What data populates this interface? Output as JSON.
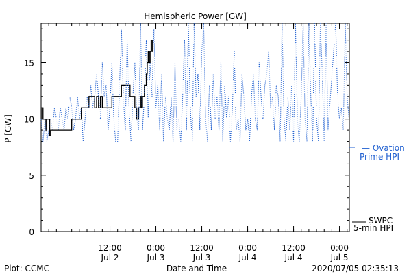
{
  "chart_data": {
    "type": "line",
    "title": "Hemispheric Power [GW]",
    "xlabel": "Date and Time",
    "ylabel": "P [GW]",
    "ylim": [
      0,
      18.5
    ],
    "y_ticks": [
      0,
      5,
      10,
      15
    ],
    "xlim": [
      "2020-07-01T18:00",
      "2020-07-05T02:35"
    ],
    "x_ticks": [
      {
        "t": "2020-07-02T12:00",
        "time": "12:00",
        "date": "Jul 2"
      },
      {
        "t": "2020-07-03T00:00",
        "time": "0:00",
        "date": "Jul 3"
      },
      {
        "t": "2020-07-03T12:00",
        "time": "12:00",
        "date": "Jul 3"
      },
      {
        "t": "2020-07-04T00:00",
        "time": "0:00",
        "date": "Jul 4"
      },
      {
        "t": "2020-07-04T12:00",
        "time": "12:00",
        "date": "Jul 4"
      },
      {
        "t": "2020-07-05T00:00",
        "time": "0:00",
        "date": "Jul 5"
      }
    ],
    "grid": false,
    "legend_position": "right",
    "series": [
      {
        "name": "SWPC 5-min HPI",
        "style": "solid",
        "color": "#000000",
        "points": [
          [
            "2020-07-01T18:00",
            10
          ],
          [
            "2020-07-01T18:15",
            11
          ],
          [
            "2020-07-01T18:30",
            10
          ],
          [
            "2020-07-01T19:00",
            10
          ],
          [
            "2020-07-01T19:15",
            9
          ],
          [
            "2020-07-01T19:30",
            10
          ],
          [
            "2020-07-01T20:00",
            10
          ],
          [
            "2020-07-01T20:15",
            8.5
          ],
          [
            "2020-07-01T20:30",
            9
          ],
          [
            "2020-07-01T22:00",
            9
          ],
          [
            "2020-07-02T00:00",
            9
          ],
          [
            "2020-07-02T01:45",
            9
          ],
          [
            "2020-07-02T02:00",
            10
          ],
          [
            "2020-07-02T04:00",
            10
          ],
          [
            "2020-07-02T04:30",
            11
          ],
          [
            "2020-07-02T06:00",
            11
          ],
          [
            "2020-07-02T06:30",
            12
          ],
          [
            "2020-07-02T07:30",
            12
          ],
          [
            "2020-07-02T08:00",
            11
          ],
          [
            "2020-07-02T08:30",
            12
          ],
          [
            "2020-07-02T09:00",
            11
          ],
          [
            "2020-07-02T09:30",
            12
          ],
          [
            "2020-07-02T10:00",
            11
          ],
          [
            "2020-07-02T12:00",
            11
          ],
          [
            "2020-07-02T12:30",
            12
          ],
          [
            "2020-07-02T14:30",
            12
          ],
          [
            "2020-07-02T15:00",
            13
          ],
          [
            "2020-07-02T17:00",
            13
          ],
          [
            "2020-07-02T17:15",
            12
          ],
          [
            "2020-07-02T18:15",
            12
          ],
          [
            "2020-07-02T18:30",
            11
          ],
          [
            "2020-07-02T19:00",
            10
          ],
          [
            "2020-07-02T19:30",
            11
          ],
          [
            "2020-07-02T20:00",
            12
          ],
          [
            "2020-07-02T20:15",
            11
          ],
          [
            "2020-07-02T20:30",
            12
          ],
          [
            "2020-07-02T20:45",
            12
          ],
          [
            "2020-07-02T21:00",
            13
          ],
          [
            "2020-07-02T21:30",
            14
          ],
          [
            "2020-07-02T21:45",
            15
          ],
          [
            "2020-07-02T22:00",
            16
          ],
          [
            "2020-07-02T22:15",
            15
          ],
          [
            "2020-07-02T22:30",
            16
          ],
          [
            "2020-07-02T22:45",
            17
          ],
          [
            "2020-07-02T23:00",
            16
          ],
          [
            "2020-07-02T23:15",
            17
          ],
          [
            "2020-07-02T23:30",
            17
          ]
        ]
      },
      {
        "name": "Ovation Prime HPI",
        "style": "dotted",
        "color": "#1f5fd0",
        "points": [
          [
            "2020-07-01T18:00",
            10
          ],
          [
            "2020-07-01T18:30",
            8
          ],
          [
            "2020-07-01T19:00",
            10
          ],
          [
            "2020-07-01T19:30",
            8
          ],
          [
            "2020-07-01T20:00",
            9
          ],
          [
            "2020-07-01T20:30",
            10
          ],
          [
            "2020-07-01T21:00",
            9
          ],
          [
            "2020-07-01T21:30",
            11
          ],
          [
            "2020-07-01T22:00",
            10
          ],
          [
            "2020-07-01T22:30",
            9
          ],
          [
            "2020-07-01T23:00",
            11
          ],
          [
            "2020-07-01T23:30",
            10
          ],
          [
            "2020-07-02T00:00",
            9
          ],
          [
            "2020-07-02T00:30",
            11
          ],
          [
            "2020-07-02T01:00",
            10
          ],
          [
            "2020-07-02T01:30",
            12
          ],
          [
            "2020-07-02T02:00",
            11
          ],
          [
            "2020-07-02T02:30",
            9
          ],
          [
            "2020-07-02T03:00",
            10
          ],
          [
            "2020-07-02T03:30",
            12
          ],
          [
            "2020-07-02T04:00",
            10
          ],
          [
            "2020-07-02T04:30",
            11
          ],
          [
            "2020-07-02T05:00",
            8
          ],
          [
            "2020-07-02T05:30",
            10
          ],
          [
            "2020-07-02T06:00",
            12
          ],
          [
            "2020-07-02T06:30",
            11
          ],
          [
            "2020-07-02T07:00",
            13
          ],
          [
            "2020-07-02T07:30",
            11
          ],
          [
            "2020-07-02T08:00",
            12
          ],
          [
            "2020-07-02T08:30",
            14
          ],
          [
            "2020-07-02T09:00",
            12
          ],
          [
            "2020-07-02T09:30",
            10
          ],
          [
            "2020-07-02T10:00",
            15
          ],
          [
            "2020-07-02T10:30",
            12
          ],
          [
            "2020-07-02T11:00",
            13
          ],
          [
            "2020-07-02T11:30",
            9
          ],
          [
            "2020-07-02T12:00",
            11
          ],
          [
            "2020-07-02T12:30",
            15
          ],
          [
            "2020-07-02T13:00",
            10
          ],
          [
            "2020-07-02T13:30",
            8
          ],
          [
            "2020-07-02T14:00",
            8
          ],
          [
            "2020-07-02T14:30",
            13
          ],
          [
            "2020-07-02T15:00",
            18
          ],
          [
            "2020-07-02T15:30",
            12
          ],
          [
            "2020-07-02T16:00",
            9
          ],
          [
            "2020-07-02T16:30",
            17
          ],
          [
            "2020-07-02T17:00",
            11
          ],
          [
            "2020-07-02T17:30",
            8
          ],
          [
            "2020-07-02T18:00",
            12
          ],
          [
            "2020-07-02T18:30",
            15
          ],
          [
            "2020-07-02T19:00",
            10
          ],
          [
            "2020-07-02T19:30",
            9
          ],
          [
            "2020-07-02T20:00",
            18.5
          ],
          [
            "2020-07-02T20:30",
            9
          ],
          [
            "2020-07-02T21:00",
            12
          ],
          [
            "2020-07-02T21:30",
            17
          ],
          [
            "2020-07-02T22:00",
            10
          ],
          [
            "2020-07-02T22:30",
            15
          ],
          [
            "2020-07-02T23:00",
            12
          ],
          [
            "2020-07-02T23:30",
            18
          ],
          [
            "2020-07-03T00:00",
            11
          ],
          [
            "2020-07-03T00:30",
            13
          ],
          [
            "2020-07-03T01:00",
            9
          ],
          [
            "2020-07-03T01:30",
            14
          ],
          [
            "2020-07-03T02:00",
            8
          ],
          [
            "2020-07-03T02:30",
            12
          ],
          [
            "2020-07-03T03:00",
            10
          ],
          [
            "2020-07-03T03:30",
            9
          ],
          [
            "2020-07-03T04:00",
            12
          ],
          [
            "2020-07-03T04:30",
            8
          ],
          [
            "2020-07-03T05:00",
            15
          ],
          [
            "2020-07-03T05:30",
            9
          ],
          [
            "2020-07-03T06:00",
            10
          ],
          [
            "2020-07-03T06:30",
            8
          ],
          [
            "2020-07-03T07:00",
            12
          ],
          [
            "2020-07-03T07:30",
            17
          ],
          [
            "2020-07-03T08:00",
            9
          ],
          [
            "2020-07-03T08:30",
            18.5
          ],
          [
            "2020-07-03T09:00",
            11
          ],
          [
            "2020-07-03T09:30",
            8
          ],
          [
            "2020-07-03T10:00",
            18.5
          ],
          [
            "2020-07-03T10:30",
            12
          ],
          [
            "2020-07-03T11:00",
            14
          ],
          [
            "2020-07-03T11:30",
            9
          ],
          [
            "2020-07-03T12:00",
            16
          ],
          [
            "2020-07-03T12:30",
            18.5
          ],
          [
            "2020-07-03T13:00",
            10
          ],
          [
            "2020-07-03T13:30",
            8
          ],
          [
            "2020-07-03T14:00",
            13
          ],
          [
            "2020-07-03T14:30",
            9
          ],
          [
            "2020-07-03T15:00",
            14
          ],
          [
            "2020-07-03T15:30",
            10
          ],
          [
            "2020-07-03T16:00",
            12
          ],
          [
            "2020-07-03T16:30",
            9
          ],
          [
            "2020-07-03T17:00",
            15
          ],
          [
            "2020-07-03T17:30",
            8
          ],
          [
            "2020-07-03T18:00",
            13
          ],
          [
            "2020-07-03T18:30",
            10
          ],
          [
            "2020-07-03T19:00",
            12
          ],
          [
            "2020-07-03T19:30",
            8
          ],
          [
            "2020-07-03T20:00",
            11
          ],
          [
            "2020-07-03T20:30",
            16
          ],
          [
            "2020-07-03T21:00",
            9
          ],
          [
            "2020-07-03T21:30",
            10
          ],
          [
            "2020-07-03T22:00",
            8
          ],
          [
            "2020-07-03T22:30",
            14
          ],
          [
            "2020-07-03T23:00",
            12
          ],
          [
            "2020-07-03T23:30",
            9
          ],
          [
            "2020-07-04T00:00",
            10
          ],
          [
            "2020-07-04T00:30",
            8
          ],
          [
            "2020-07-04T01:00",
            12
          ],
          [
            "2020-07-04T01:30",
            14
          ],
          [
            "2020-07-04T02:00",
            10
          ],
          [
            "2020-07-04T02:30",
            9
          ],
          [
            "2020-07-04T03:00",
            15
          ],
          [
            "2020-07-04T03:30",
            12
          ],
          [
            "2020-07-04T04:00",
            10
          ],
          [
            "2020-07-04T04:30",
            13
          ],
          [
            "2020-07-04T05:00",
            14
          ],
          [
            "2020-07-04T05:30",
            16
          ],
          [
            "2020-07-04T06:00",
            11
          ],
          [
            "2020-07-04T06:30",
            12
          ],
          [
            "2020-07-04T07:00",
            9
          ],
          [
            "2020-07-04T07:30",
            13
          ],
          [
            "2020-07-04T08:00",
            12
          ],
          [
            "2020-07-04T08:30",
            8
          ],
          [
            "2020-07-04T09:00",
            18.5
          ],
          [
            "2020-07-04T09:30",
            10
          ],
          [
            "2020-07-04T10:00",
            8
          ],
          [
            "2020-07-04T10:30",
            12
          ],
          [
            "2020-07-04T11:00",
            9
          ],
          [
            "2020-07-04T11:30",
            13
          ],
          [
            "2020-07-04T12:00",
            8
          ],
          [
            "2020-07-04T12:30",
            18.5
          ],
          [
            "2020-07-04T13:00",
            10
          ],
          [
            "2020-07-04T13:30",
            8
          ],
          [
            "2020-07-04T14:00",
            12
          ],
          [
            "2020-07-04T14:30",
            18.5
          ],
          [
            "2020-07-04T15:00",
            10
          ],
          [
            "2020-07-04T15:30",
            8
          ],
          [
            "2020-07-04T16:00",
            18.5
          ],
          [
            "2020-07-04T16:30",
            12
          ],
          [
            "2020-07-04T17:00",
            8
          ],
          [
            "2020-07-04T17:30",
            18.5
          ],
          [
            "2020-07-04T18:00",
            10
          ],
          [
            "2020-07-04T18:30",
            8
          ],
          [
            "2020-07-04T19:00",
            18.5
          ],
          [
            "2020-07-04T19:30",
            14
          ],
          [
            "2020-07-04T20:00",
            8
          ],
          [
            "2020-07-04T20:30",
            18.5
          ],
          [
            "2020-07-04T21:00",
            9
          ],
          [
            "2020-07-04T23:00",
            18.5
          ],
          [
            "2020-07-04T23:30",
            12
          ],
          [
            "2020-07-05T00:00",
            10
          ],
          [
            "2020-07-05T00:30",
            11
          ],
          [
            "2020-07-05T01:00",
            9
          ],
          [
            "2020-07-05T01:30",
            18.5
          ],
          [
            "2020-07-05T02:00",
            12
          ],
          [
            "2020-07-05T02:30",
            10
          ]
        ]
      }
    ]
  },
  "legend": {
    "ovation_line1": "— Ovation",
    "ovation_line2": "Prime HPI",
    "swpc_line1": "SWPC",
    "swpc_line2": "5-min HPI"
  },
  "footer": {
    "left": "Plot: CCMC",
    "center": "Date and Time",
    "right": "2020/07/05 02:35:13"
  }
}
